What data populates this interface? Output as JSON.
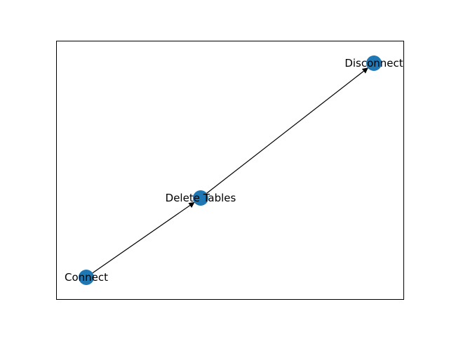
{
  "diagram": {
    "type": "directed-graph",
    "node_color": "#1f77b4",
    "edge_color": "#000000",
    "frame_color": "#000000",
    "nodes": [
      {
        "id": "connect",
        "label": "Connect"
      },
      {
        "id": "delete_tables",
        "label": "Delete Tables"
      },
      {
        "id": "disconnect",
        "label": "Disconnect"
      }
    ],
    "edges": [
      {
        "from": "connect",
        "to": "delete_tables"
      },
      {
        "from": "delete_tables",
        "to": "disconnect"
      }
    ]
  }
}
